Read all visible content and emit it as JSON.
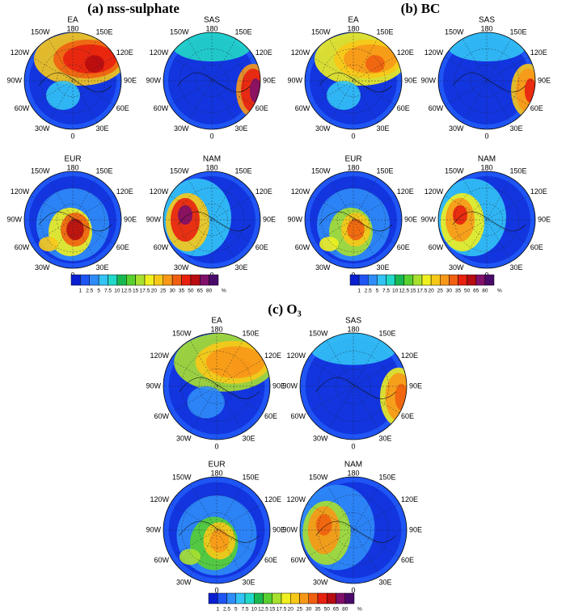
{
  "panels": [
    {
      "title": "(a) nss-sulphate",
      "maps": [
        {
          "label": "EA"
        },
        {
          "label": "SAS"
        },
        {
          "label": "EUR"
        },
        {
          "label": "NAM"
        }
      ]
    },
    {
      "title": "(b) BC",
      "maps": [
        {
          "label": "EA"
        },
        {
          "label": "SAS"
        },
        {
          "label": "EUR"
        },
        {
          "label": "NAM"
        }
      ]
    },
    {
      "title": "(c) O₃",
      "maps": [
        {
          "label": "EA"
        },
        {
          "label": "SAS"
        },
        {
          "label": "EUR"
        },
        {
          "label": "NAM"
        }
      ]
    }
  ],
  "lon_labels": [
    "180",
    "150E",
    "120E",
    "90E",
    "60E",
    "30E",
    "0",
    "30W",
    "60W",
    "90W",
    "120W",
    "150W"
  ],
  "colorbar": {
    "ticks": [
      1,
      2.5,
      5,
      7.5,
      10,
      12.5,
      15,
      17.5,
      20,
      25,
      30,
      35,
      50,
      65,
      80
    ],
    "unit": "%",
    "colors": [
      "#0a1fd0",
      "#1f55f5",
      "#2f8cf8",
      "#33c3f5",
      "#22d8c8",
      "#18b850",
      "#58d030",
      "#a8e030",
      "#f0f020",
      "#f8c818",
      "#f89818",
      "#f06010",
      "#e82010",
      "#b80c10",
      "#80106a",
      "#4a0a6a"
    ]
  }
}
